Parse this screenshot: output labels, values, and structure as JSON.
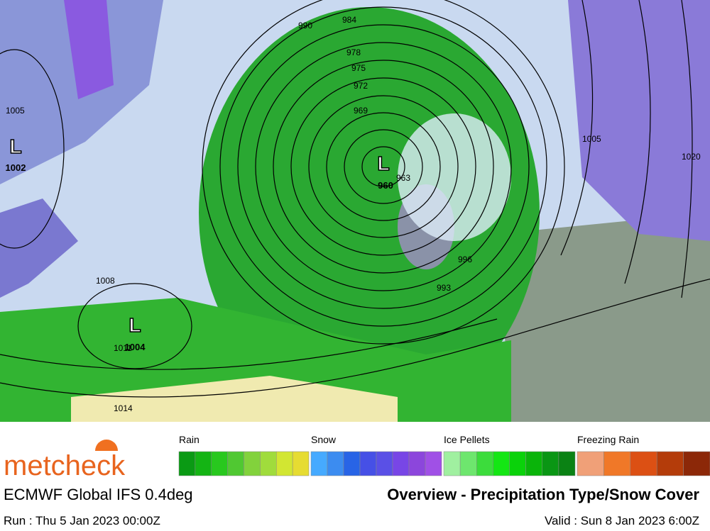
{
  "map": {
    "lows": [
      {
        "symbol": "L",
        "pressure": "960"
      },
      {
        "symbol": "L",
        "pressure": "1002"
      },
      {
        "symbol": "L",
        "pressure": "1004"
      }
    ],
    "isobar_labels": [
      "990",
      "984",
      "978",
      "975",
      "972",
      "969",
      "963",
      "1005",
      "1008",
      "1014",
      "1005",
      "1020",
      "996",
      "993",
      "1011"
    ]
  },
  "legend": {
    "groups": [
      {
        "label": "Rain",
        "colors": [
          "#0a9a14",
          "#14b414",
          "#28c81e",
          "#50c832",
          "#82d23c",
          "#a0dc3c",
          "#d2e632",
          "#e6dc32"
        ]
      },
      {
        "label": "Snow",
        "colors": [
          "#46aaff",
          "#3c8cf0",
          "#2864e6",
          "#4650e6",
          "#5a50e6",
          "#7846e6",
          "#8c46dc",
          "#a050e6"
        ]
      },
      {
        "label": "Ice Pellets",
        "colors": [
          "#a0f0a0",
          "#6ee66e",
          "#3cdc3c",
          "#14e614",
          "#0ad20a",
          "#0ab40a",
          "#0a9614",
          "#0a8214"
        ]
      },
      {
        "label": "Freezing Rain",
        "colors": [
          "#f0a078",
          "#f07828",
          "#dc5014",
          "#b43c0a",
          "#8c2808"
        ]
      }
    ]
  },
  "header": {
    "logo": "metcheck",
    "model": "ECMWF Global IFS 0.4deg",
    "title": "Overview - Precipitation Type/Snow Cover",
    "run": "Run : Thu 5 Jan 2023 00:00Z",
    "valid": "Valid : Sun 8 Jan 2023 6:00Z"
  }
}
